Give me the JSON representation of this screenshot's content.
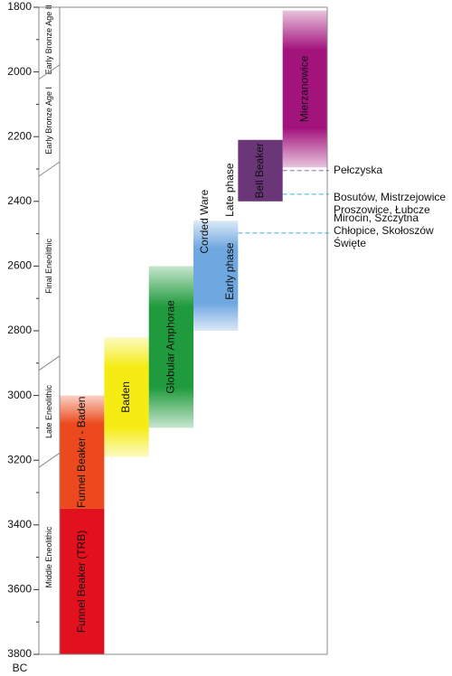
{
  "chart_data": {
    "type": "timeline",
    "y_label": "BC",
    "ylim": [
      1800,
      3800
    ],
    "yticks": [
      1800,
      2000,
      2200,
      2400,
      2600,
      2800,
      3000,
      3200,
      3400,
      3600,
      3800
    ],
    "minor_yticks": [
      1900,
      2100,
      2300,
      2500,
      2700,
      2900,
      3100,
      3300,
      3500,
      3700
    ],
    "periods": [
      {
        "name": "Early Bronze Age II",
        "start": 1800,
        "end": 2000
      },
      {
        "name": "Early Bronze Age I",
        "start": 2000,
        "end": 2300
      },
      {
        "name": "Final Eneolithic",
        "start": 2300,
        "end": 2900
      },
      {
        "name": "Late Eneolithic",
        "start": 2900,
        "end": 3200
      },
      {
        "name": "Middle Eneolithic",
        "start": 3200,
        "end": 3800
      }
    ],
    "bars": [
      {
        "labels": [
          "Funnel Beaker - Baden"
        ],
        "start": 3000,
        "end": 3350,
        "color": "#ec4a1e"
      },
      {
        "labels": [
          "Funnel Beaker (TRB)"
        ],
        "start": 3350,
        "end": 3800,
        "color": "#e3101e"
      },
      {
        "labels": [
          "Baden"
        ],
        "start": 2820,
        "end": 3190,
        "color": "#f5ec14"
      },
      {
        "labels": [
          "Globular Amphorae"
        ],
        "start": 2600,
        "end": 3100,
        "color": "#1f9a3c"
      },
      {
        "labels": [
          "Corded Ware",
          "Early phase",
          "Late phase"
        ],
        "start": 2460,
        "end": 2800,
        "color": "#6fa7e0"
      },
      {
        "labels": [
          "Bell Beaker"
        ],
        "start": 2210,
        "end": 2400,
        "color": "#6a3677"
      },
      {
        "labels": [
          "Mierzanowice"
        ],
        "start": 1810,
        "end": 2295,
        "color": "#a3137c"
      }
    ],
    "annotations": [
      {
        "lines": [
          "Pełczyska"
        ],
        "value": 2305,
        "color": "#8a6aa8"
      },
      {
        "lines": [
          "Bosutów, Mistrzejowice",
          "Proszowice, Łubcze"
        ],
        "value": 2378,
        "color": "#35b4e0"
      },
      {
        "lines": [
          "Mirocin, Szczytna",
          "Chłopice, Skołoszów",
          "Święte"
        ],
        "value": 2498,
        "color": "#35b4e0"
      }
    ]
  }
}
